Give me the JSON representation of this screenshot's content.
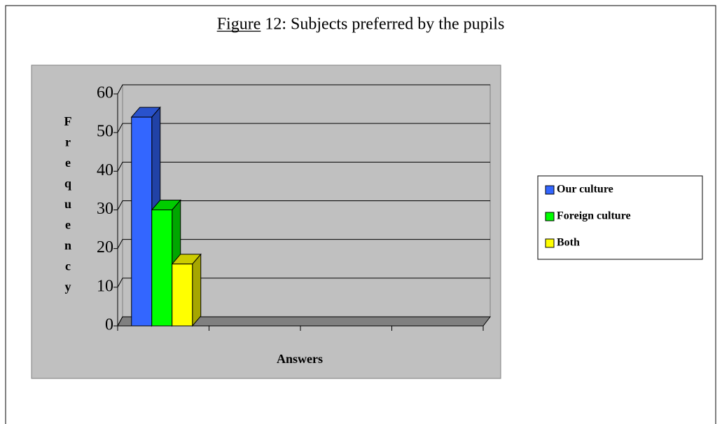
{
  "chart_data": {
    "type": "bar3d",
    "title": "Figure 12: Subjects preferred by the pupils",
    "y_label": "Frequency",
    "x_label": "Answers",
    "categories": [
      null,
      null,
      null,
      null
    ],
    "series": [
      {
        "name": "Our culture",
        "color": "#3366ff",
        "values": [
          54,
          null,
          null,
          null
        ]
      },
      {
        "name": "Foreign culture",
        "color": "#00ff00",
        "values": [
          30,
          null,
          null,
          null
        ]
      },
      {
        "name": "Both",
        "color": "#ffff00",
        "values": [
          16,
          null,
          null,
          null
        ]
      }
    ],
    "ylim": [
      0,
      60
    ],
    "yticks": [
      0,
      10,
      20,
      30,
      40,
      50,
      60
    ],
    "grid": true,
    "legend": "right"
  }
}
